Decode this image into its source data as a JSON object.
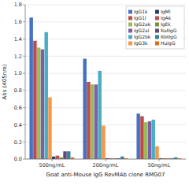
{
  "chart_data": {
    "type": "bar",
    "categories": [
      "500ng/mL",
      "200ng/mL",
      "50ng/mL"
    ],
    "series": [
      {
        "name": "IgG1k",
        "color": "#4472C4",
        "values": [
          1.65,
          1.17,
          0.53
        ]
      },
      {
        "name": "IgG1l",
        "color": "#BE4B48",
        "values": [
          1.38,
          0.9,
          0.5
        ]
      },
      {
        "name": "IgG2ak",
        "color": "#9BBB59",
        "values": [
          1.3,
          0.87,
          0.43
        ]
      },
      {
        "name": "IgG2al",
        "color": "#7E5FA6",
        "values": [
          1.28,
          0.87,
          0.44
        ]
      },
      {
        "name": "IgG2bk",
        "color": "#4BACC6",
        "values": [
          1.48,
          1.03,
          0.46
        ]
      },
      {
        "name": "IgG3k",
        "color": "#F79646",
        "values": [
          0.72,
          0.39,
          0.15
        ]
      },
      {
        "name": "IgMl",
        "color": "#243F60",
        "values": [
          0.03,
          0.01,
          0.01
        ]
      },
      {
        "name": "IgAk",
        "color": "#C0504D",
        "values": [
          0.04,
          0.01,
          0.01
        ]
      },
      {
        "name": "IgEk",
        "color": "#76933C",
        "values": [
          0.02,
          0.01,
          0.01
        ]
      },
      {
        "name": "RatIgG",
        "color": "#604A7B",
        "values": [
          0.09,
          0.01,
          0.01
        ]
      },
      {
        "name": "RbtIgG",
        "color": "#31849B",
        "values": [
          0.09,
          0.03,
          0.02
        ]
      },
      {
        "name": "HuIgG",
        "color": "#E36C09",
        "values": [
          0.02,
          0.01,
          0.01
        ]
      }
    ],
    "xlabel": "Goat anti-Mouse IgG RevMAb clone RMG07",
    "ylabel": "Abs (405nm)",
    "ylim": [
      0,
      1.8
    ],
    "yticks": [
      {
        "value": 0.0,
        "label": "0.0"
      },
      0.2,
      0.4,
      0.6,
      0.8,
      {
        "value": 1.0,
        "label": "1.0"
      },
      1.2,
      1.4,
      1.6,
      1.8
    ],
    "grid": true,
    "legend": "upper right"
  }
}
